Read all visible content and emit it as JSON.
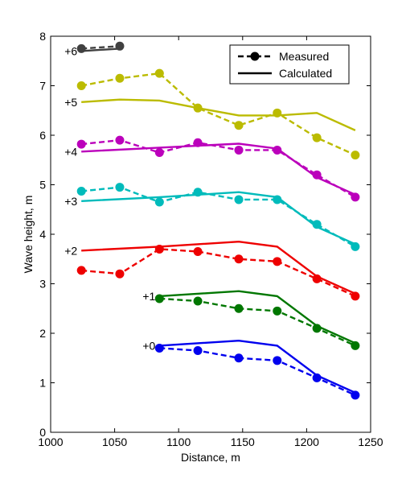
{
  "chart_data": {
    "type": "line",
    "xlabel": "Distance, m",
    "ylabel": "Wave height, m",
    "xlim": [
      1000,
      1250
    ],
    "ylim": [
      0,
      8
    ],
    "xticks": [
      "1000",
      "1050",
      "1100",
      "1150",
      "1200",
      "1250"
    ],
    "yticks": [
      "0",
      "1",
      "2",
      "3",
      "4",
      "5",
      "6",
      "7",
      "8"
    ],
    "grid": false,
    "legend": {
      "position": "top-right",
      "entries": [
        {
          "label": "Measured",
          "style": "dashed-markers"
        },
        {
          "label": "Calculated",
          "style": "solid"
        }
      ]
    },
    "groups": [
      {
        "label": "+0",
        "color": "#0000ee",
        "measured": {
          "x": [
            1085,
            1115,
            1147,
            1177,
            1208,
            1238
          ],
          "y": [
            1.7,
            1.65,
            1.5,
            1.45,
            1.1,
            0.75
          ]
        },
        "calculated": {
          "x": [
            1085,
            1147,
            1177,
            1208,
            1238
          ],
          "y": [
            1.75,
            1.85,
            1.75,
            1.15,
            0.8
          ]
        }
      },
      {
        "label": "+1",
        "color": "#007700",
        "measured": {
          "x": [
            1085,
            1115,
            1147,
            1177,
            1208,
            1238
          ],
          "y": [
            2.7,
            2.65,
            2.5,
            2.45,
            2.1,
            1.75
          ]
        },
        "calculated": {
          "x": [
            1085,
            1147,
            1177,
            1208,
            1238
          ],
          "y": [
            2.75,
            2.85,
            2.75,
            2.15,
            1.8
          ]
        }
      },
      {
        "label": "+2",
        "color": "#ee0000",
        "measured": {
          "x": [
            1024,
            1054,
            1085,
            1115,
            1147,
            1177,
            1208,
            1238
          ],
          "y": [
            3.27,
            3.2,
            3.7,
            3.65,
            3.5,
            3.45,
            3.1,
            2.75
          ]
        },
        "calculated": {
          "x": [
            1024,
            1085,
            1147,
            1177,
            1208,
            1238
          ],
          "y": [
            3.67,
            3.75,
            3.85,
            3.75,
            3.15,
            2.8
          ]
        }
      },
      {
        "label": "+3",
        "color": "#00bbbb",
        "measured": {
          "x": [
            1024,
            1054,
            1085,
            1115,
            1147,
            1177,
            1208,
            1238
          ],
          "y": [
            4.87,
            4.95,
            4.65,
            4.85,
            4.7,
            4.7,
            4.2,
            3.75
          ]
        },
        "calculated": {
          "x": [
            1024,
            1085,
            1147,
            1177,
            1208,
            1238
          ],
          "y": [
            4.67,
            4.75,
            4.85,
            4.75,
            4.15,
            3.8
          ]
        }
      },
      {
        "label": "+4",
        "color": "#bb00bb",
        "measured": {
          "x": [
            1024,
            1054,
            1085,
            1115,
            1147,
            1177,
            1208,
            1238
          ],
          "y": [
            5.82,
            5.9,
            5.65,
            5.85,
            5.7,
            5.7,
            5.2,
            4.75
          ]
        },
        "calculated": {
          "x": [
            1024,
            1085,
            1147,
            1177,
            1208,
            1238
          ],
          "y": [
            5.67,
            5.75,
            5.83,
            5.73,
            5.15,
            4.8
          ]
        }
      },
      {
        "label": "+5",
        "color": "#bbbb00",
        "measured": {
          "x": [
            1024,
            1054,
            1085,
            1115,
            1147,
            1177,
            1208,
            1238
          ],
          "y": [
            7.0,
            7.15,
            7.25,
            6.55,
            6.2,
            6.45,
            5.95,
            5.6
          ]
        },
        "calculated": {
          "x": [
            1024,
            1054,
            1085,
            1115,
            1147,
            1177,
            1208,
            1238
          ],
          "y": [
            6.67,
            6.72,
            6.7,
            6.55,
            6.4,
            6.4,
            6.45,
            6.1
          ]
        }
      },
      {
        "label": "+6",
        "color": "#404040",
        "measured": {
          "x": [
            1024,
            1054
          ],
          "y": [
            7.75,
            7.8
          ]
        },
        "calculated": {
          "x": [
            1024,
            1054
          ],
          "y": [
            7.7,
            7.75
          ]
        }
      }
    ]
  }
}
